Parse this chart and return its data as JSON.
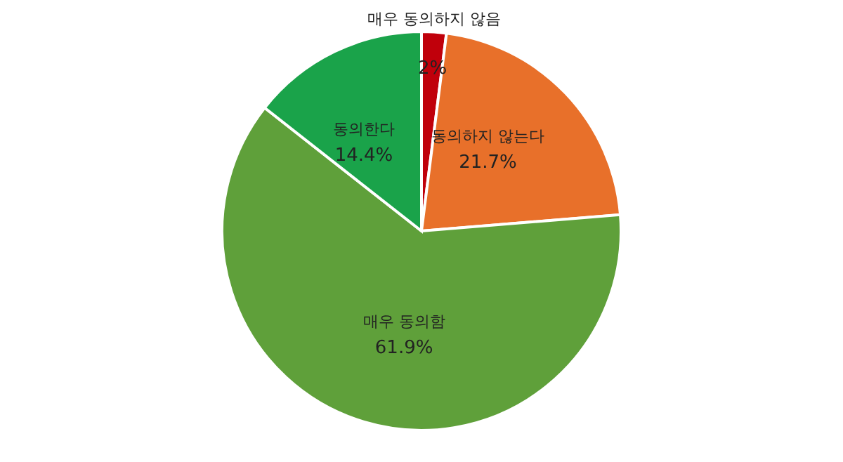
{
  "chart_data": {
    "type": "pie",
    "categories": [
      "매우 동의하지 않음",
      "동의하지 않는다",
      "매우 동의함",
      "동의한다"
    ],
    "values": [
      2,
      21.7,
      61.9,
      14.4
    ],
    "value_labels": [
      "2%",
      "21.7%",
      "61.9%",
      "14.4%"
    ],
    "colors": [
      "#c0000b",
      "#e8702a",
      "#5fa03a",
      "#1aa34a"
    ]
  }
}
